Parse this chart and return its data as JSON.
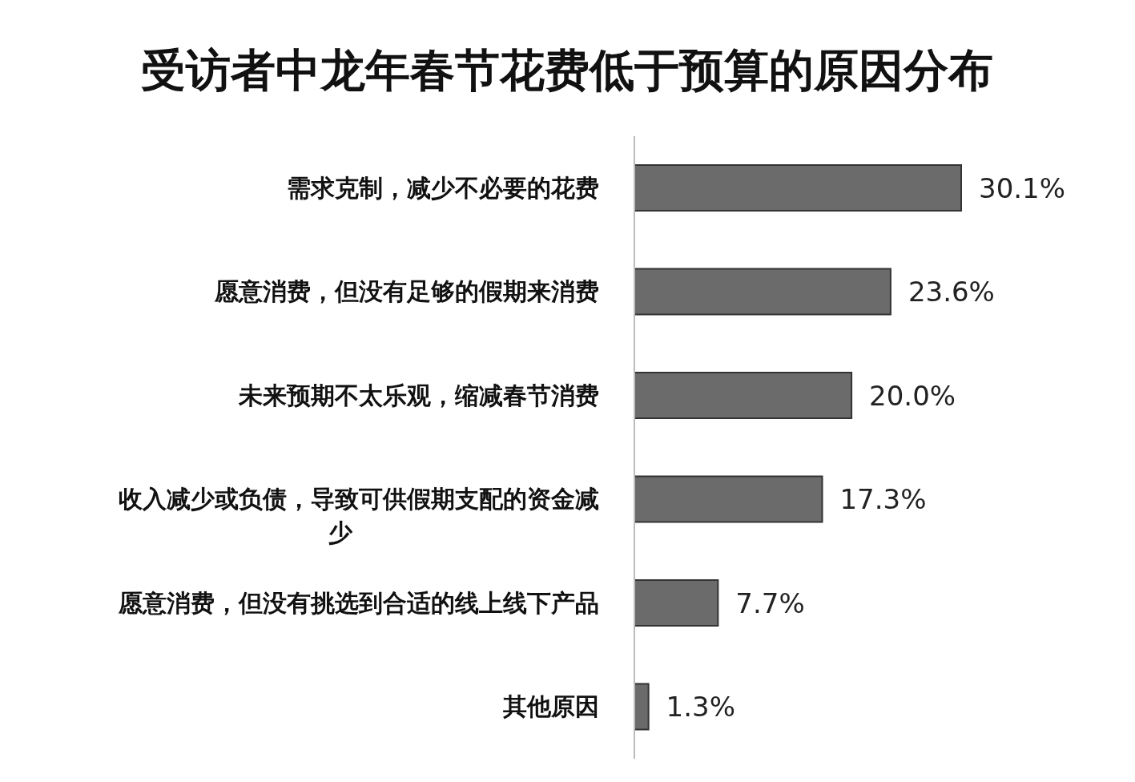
{
  "chart_data": {
    "type": "bar",
    "orientation": "horizontal",
    "title": "受访者中龙年春节花费低于预算的原因分布",
    "categories": [
      "需求克制，减少不必要的花费",
      "愿意消费，但没有足够的假期来消费",
      "未来预期不太乐观，缩减春节消费",
      "收入减少或负债，导致可供假期支配的资金减少",
      "愿意消费，但没有挑选到合适的线上线下产品",
      "其他原因"
    ],
    "values": [
      30.1,
      23.6,
      20.0,
      17.3,
      7.7,
      1.3
    ],
    "value_labels": [
      "30.1%",
      "23.6%",
      "20.0%",
      "17.3%",
      "7.7%",
      "1.3%"
    ],
    "color": "#6b6b6b"
  }
}
